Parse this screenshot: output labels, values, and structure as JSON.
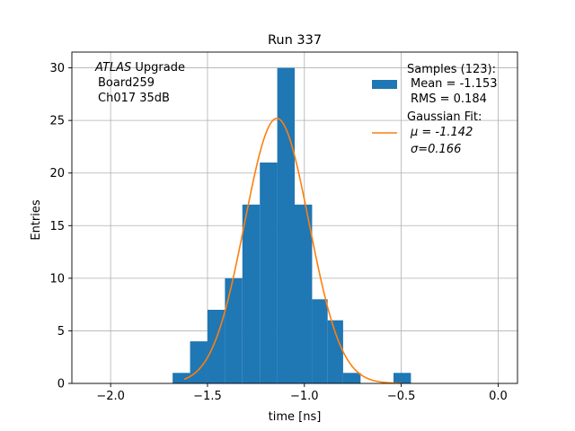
{
  "chart_data": {
    "type": "bar",
    "title": "Run 337",
    "xlabel": "time [ns]",
    "ylabel": "Entries",
    "xlim": [
      -2.2,
      0.1
    ],
    "ylim": [
      0,
      31.5
    ],
    "xticks": [
      -2.0,
      -1.5,
      -1.0,
      -0.5,
      0.0
    ],
    "xtick_labels": [
      "−2.0",
      "−1.5",
      "−1.0",
      "−0.5",
      "0.0"
    ],
    "yticks": [
      0,
      5,
      10,
      15,
      20,
      25,
      30
    ],
    "ytick_labels": [
      "0",
      "5",
      "10",
      "15",
      "20",
      "25",
      "30"
    ],
    "grid": true,
    "annotation": {
      "italic": "ATLAS",
      "rest": " Upgrade",
      "line2": "Board259",
      "line3": "Ch017 35dB"
    },
    "legend_placement": "top-right",
    "histogram": {
      "name": "Samples (123):",
      "mean_text": "Mean = -1.153",
      "rms_text": "RMS = 0.184",
      "color": "#1f77b4",
      "bins": [
        {
          "x0": -1.68,
          "x1": -1.59,
          "count": 1
        },
        {
          "x0": -1.59,
          "x1": -1.5,
          "count": 4
        },
        {
          "x0": -1.5,
          "x1": -1.41,
          "count": 7
        },
        {
          "x0": -1.41,
          "x1": -1.32,
          "count": 10
        },
        {
          "x0": -1.32,
          "x1": -1.23,
          "count": 17
        },
        {
          "x0": -1.23,
          "x1": -1.14,
          "count": 21
        },
        {
          "x0": -1.14,
          "x1": -1.05,
          "count": 30
        },
        {
          "x0": -1.05,
          "x1": -0.96,
          "count": 17
        },
        {
          "x0": -0.96,
          "x1": -0.88,
          "count": 8
        },
        {
          "x0": -0.88,
          "x1": -0.8,
          "count": 6
        },
        {
          "x0": -0.8,
          "x1": -0.71,
          "count": 1
        },
        {
          "x0": -0.71,
          "x1": -0.62,
          "count": 0
        },
        {
          "x0": -0.62,
          "x1": -0.54,
          "count": 0
        },
        {
          "x0": -0.54,
          "x1": -0.45,
          "count": 1
        }
      ]
    },
    "fit": {
      "name": "Gaussian Fit:",
      "mu_label": "μ = -1.142",
      "sigma_label": "σ=0.166",
      "color": "#ff7f0e",
      "mu": -1.142,
      "sigma": 0.166,
      "amplitude": 25.2,
      "x_range": [
        -1.62,
        -0.5
      ]
    }
  }
}
